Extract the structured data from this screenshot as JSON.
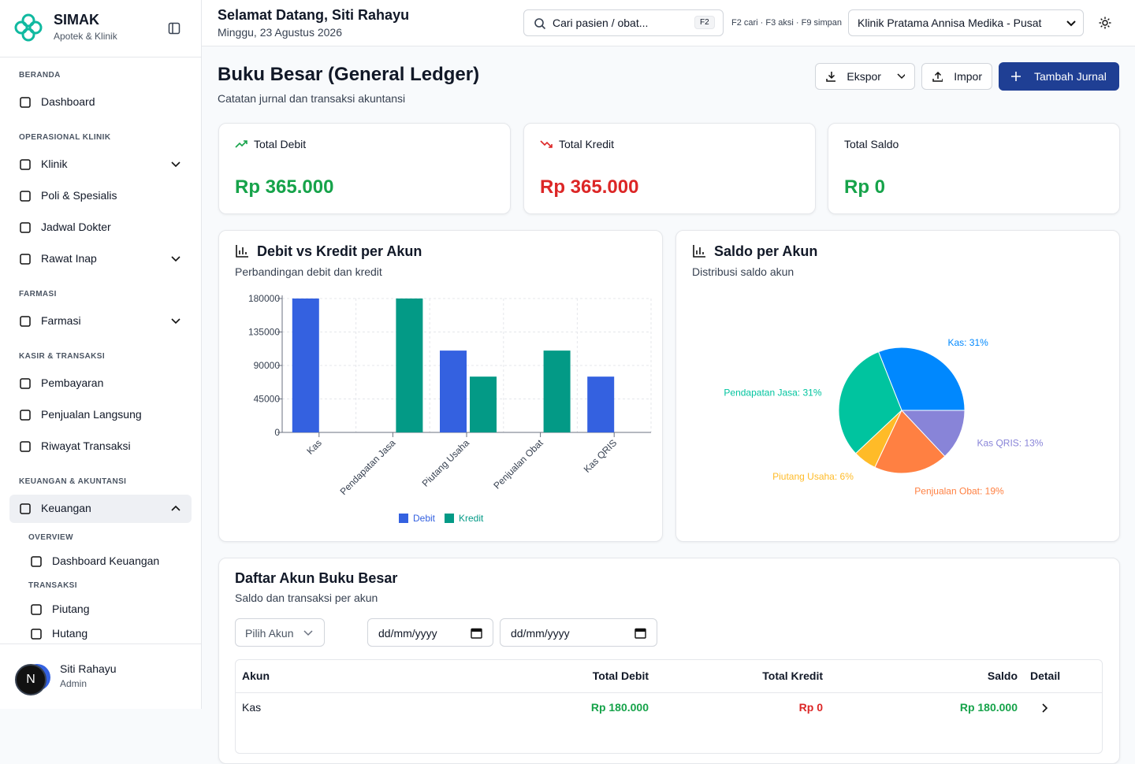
{
  "sidebar": {
    "brand": "SIMAK",
    "tagline": "Apotek & Klinik",
    "sections": [
      {
        "title": "BERANDA",
        "items": [
          "Dashboard"
        ]
      },
      {
        "title": "OPERASIONAL KLINIK",
        "items": [
          "Klinik",
          "Poli & Spesialis",
          "Jadwal Dokter",
          "Rawat Inap"
        ]
      },
      {
        "title": "FARMASI",
        "items": [
          "Farmasi"
        ]
      },
      {
        "title": "KASIR & TRANSAKSI",
        "items": [
          "Pembayaran",
          "Penjualan Langsung",
          "Riwayat Transaksi"
        ]
      },
      {
        "title": "KEUANGAN & AKUNTANSI",
        "items": [
          "Keuangan"
        ]
      }
    ],
    "submenu": [
      {
        "title": "OVERVIEW",
        "items": [
          "Dashboard Keuangan"
        ]
      },
      {
        "title": "TRANSAKSI",
        "items": [
          "Piutang",
          "Hutang"
        ]
      }
    ],
    "user": {
      "initial": "N",
      "name": "Siti Rahayu",
      "role": "Admin"
    }
  },
  "header": {
    "greeting": "Selamat Datang, Siti Rahayu",
    "date": "Minggu, 23 Agustus 2026",
    "search_placeholder": "Cari pasien / obat...",
    "search_key": "F2",
    "shortcuts": "F2 cari · F3 aksi · F9 simpan",
    "clinic": "Klinik Pratama Annisa Medika - Pusat"
  },
  "page": {
    "title": "Buku Besar (General Ledger)",
    "subtitle": "Catatan jurnal dan transaksi akuntansi",
    "buttons": [
      "Ekspor",
      "Impor",
      "Tambah Jurnal"
    ]
  },
  "stats": [
    {
      "label": "Total Debit",
      "value": "Rp 365.000"
    },
    {
      "label": "Total Kredit",
      "value": "Rp 365.000"
    },
    {
      "label": "Total Saldo",
      "value": "Rp 0"
    }
  ],
  "bar_chart": {
    "type": "bar",
    "title": "Debit vs Kredit per Akun",
    "subtitle": "Perbandingan debit dan kredit",
    "categories": [
      "Kas",
      "Pendapatan Jasa",
      "Piutang Usaha",
      "Penjualan Obat",
      "Kas QRIS"
    ],
    "series": [
      {
        "name": "Debit",
        "color": "#3461e0",
        "values": [
          180000,
          0,
          110000,
          0,
          75000
        ]
      },
      {
        "name": "Kredit",
        "color": "#039a86",
        "values": [
          0,
          180000,
          75000,
          110000,
          0
        ]
      }
    ],
    "ylim": [
      0,
      180000
    ],
    "yticks": [
      0,
      45000,
      90000,
      135000,
      180000
    ],
    "grid": true,
    "legend": "bottom"
  },
  "pie_chart": {
    "type": "pie",
    "title": "Saldo per Akun",
    "subtitle": "Distribusi saldo akun",
    "categories": [
      "Kas",
      "Pendapatan Jasa",
      "Piutang Usaha",
      "Penjualan Obat",
      "Kas QRIS"
    ],
    "values": [
      31,
      31,
      6,
      19,
      13
    ],
    "value_labels": [
      "Kas: 31%",
      "Pendapatan Jasa: 31%",
      "Piutang Usaha: 6%",
      "Penjualan Obat: 19%",
      "Kas QRIS: 13%"
    ],
    "colors": [
      "#0088fe",
      "#00c49f",
      "#ffbb28",
      "#ff8042",
      "#8884d8"
    ]
  },
  "ledger": {
    "title": "Daftar Akun Buku Besar",
    "subtitle": "Saldo dan transaksi per akun",
    "filters": {
      "account": "Pilih Akun",
      "date_from": "dd/mm/yyyy",
      "date_to": "dd/mm/yyyy"
    },
    "columns": [
      "Akun",
      "Total Debit",
      "Total Kredit",
      "Saldo",
      "Detail"
    ],
    "rows": [
      [
        "Kas",
        "Rp 180.000",
        "Rp 0",
        "Rp 180.000"
      ]
    ]
  }
}
